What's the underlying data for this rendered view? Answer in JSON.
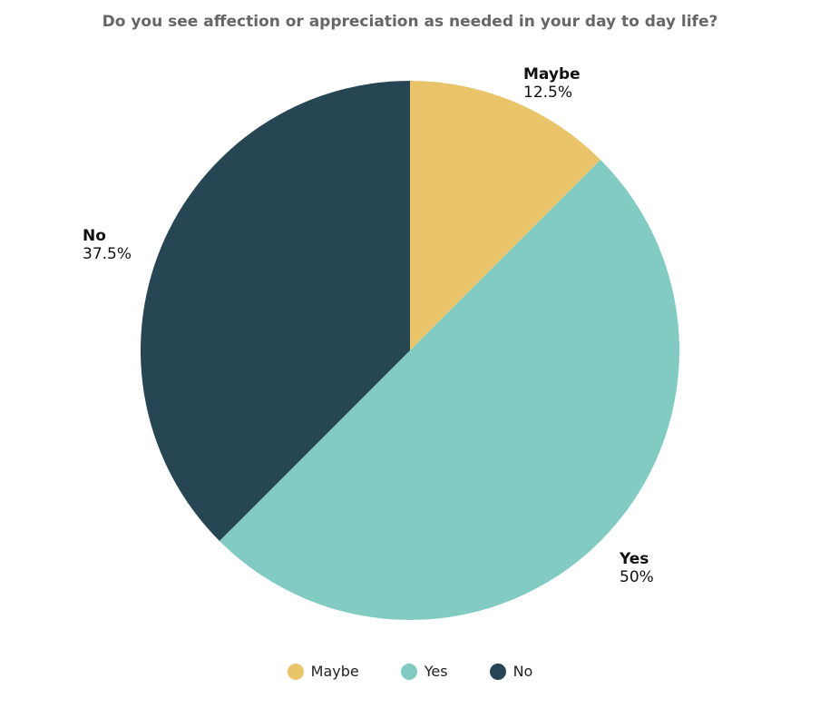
{
  "chart_data": {
    "type": "pie",
    "title": "Do you see affection or appreciation as needed in your day to day life?",
    "slices": [
      {
        "label": "Maybe",
        "value": 12.5,
        "display": "12.5%",
        "color": "#e9c46a"
      },
      {
        "label": "Yes",
        "value": 50,
        "display": "50%",
        "color": "#81cbc3"
      },
      {
        "label": "No",
        "value": 37.5,
        "display": "37.5%",
        "color": "#264653"
      }
    ],
    "legend": "bottom"
  }
}
